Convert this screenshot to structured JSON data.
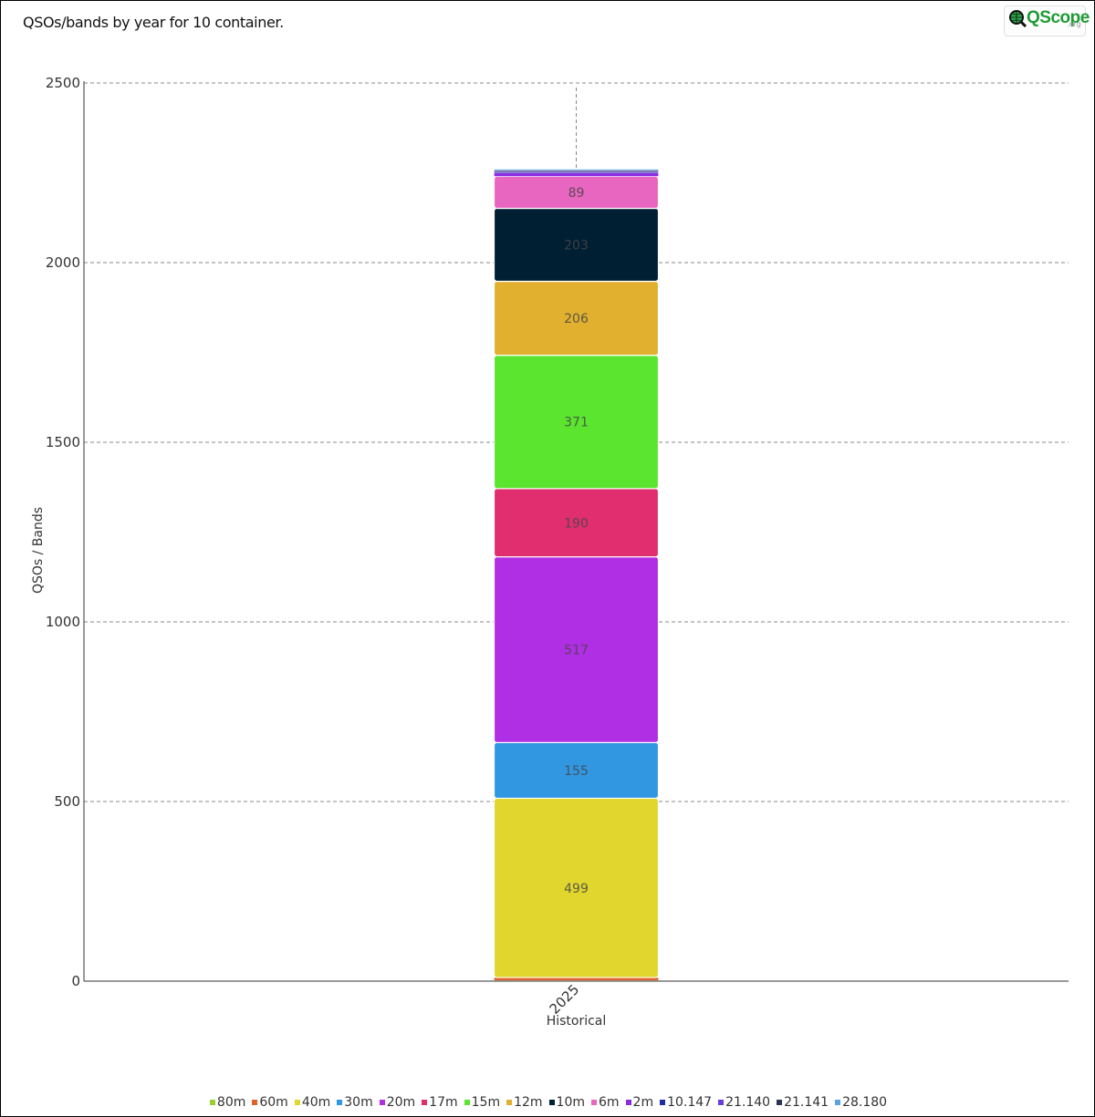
{
  "title": "QSOs/bands by year for 10 container.",
  "logo": {
    "word": "QScope",
    "sub": ".org"
  },
  "chart_data": {
    "type": "bar",
    "stacked": true,
    "categories": [
      "2025"
    ],
    "xlabel": "Historical",
    "ylabel": "QSOs / Bands",
    "ylim": [
      0,
      2500
    ],
    "yticks": [
      0,
      500,
      1000,
      1500,
      2000,
      2500
    ],
    "grid": true,
    "legend_position": "bottom",
    "series": [
      {
        "name": "80m",
        "values": [
          2
        ],
        "color": "#9acd32",
        "label": ""
      },
      {
        "name": "60m",
        "values": [
          8
        ],
        "color": "#e2612a",
        "label": ""
      },
      {
        "name": "40m",
        "values": [
          499
        ],
        "color": "#e0d62d",
        "label": "499"
      },
      {
        "name": "30m",
        "values": [
          155
        ],
        "color": "#3197e1",
        "label": "155"
      },
      {
        "name": "20m",
        "values": [
          517
        ],
        "color": "#b02ee3",
        "label": "517"
      },
      {
        "name": "17m",
        "values": [
          190
        ],
        "color": "#e02e6f",
        "label": "190"
      },
      {
        "name": "15m",
        "values": [
          371
        ],
        "color": "#5be52e",
        "label": "371"
      },
      {
        "name": "12m",
        "values": [
          206
        ],
        "color": "#e0b02e",
        "label": "206"
      },
      {
        "name": "10m",
        "values": [
          203
        ],
        "color": "#001f33",
        "label": "203"
      },
      {
        "name": "6m",
        "values": [
          89
        ],
        "color": "#e865c0",
        "label": "89"
      },
      {
        "name": "2m",
        "values": [
          10
        ],
        "color": "#8a2be2",
        "label": ""
      },
      {
        "name": "10.147",
        "values": [
          3
        ],
        "color": "#1a2ea0",
        "label": ""
      },
      {
        "name": "21.140",
        "values": [
          2
        ],
        "color": "#6a3de0",
        "label": ""
      },
      {
        "name": "21.141",
        "values": [
          2
        ],
        "color": "#2a3550",
        "label": ""
      },
      {
        "name": "28.180",
        "values": [
          3
        ],
        "color": "#5ba3e0",
        "label": ""
      }
    ]
  }
}
